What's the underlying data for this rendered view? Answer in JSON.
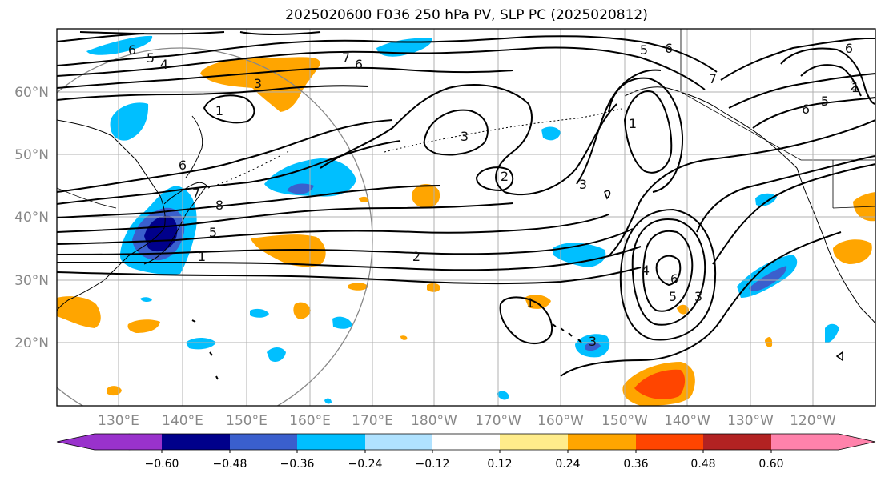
{
  "title": "2025020600 F036 250 hPa PV, SLP PC (2025020812)",
  "lat_labels": [
    "60°N",
    "50°N",
    "40°N",
    "30°N",
    "20°N"
  ],
  "lon_labels": [
    "130°E",
    "140°E",
    "150°E",
    "160°E",
    "170°E",
    "180°W",
    "170°W",
    "160°W",
    "150°W",
    "140°W",
    "130°W",
    "120°W"
  ],
  "colorbar": {
    "ticks": [
      "−0.60",
      "−0.48",
      "−0.36",
      "−0.24",
      "−0.12",
      "0.12",
      "0.24",
      "0.36",
      "0.48",
      "0.60"
    ],
    "colors": [
      "#9932cc",
      "#00008b",
      "#3a5fcd",
      "#00bfff",
      "#b0e2ff",
      "#ffffff",
      "#ffec8b",
      "#ffa500",
      "#ff4500",
      "#b22222",
      "#ff82ab"
    ]
  },
  "contour_labels": [
    "6",
    "5",
    "4",
    "7",
    "6",
    "1",
    "3",
    "5",
    "6",
    "7",
    "1",
    "6",
    "5",
    "6",
    "1",
    "3",
    "6",
    "2",
    "7",
    "3",
    "8",
    "5",
    "1",
    "2",
    "4",
    "6",
    "5",
    "3",
    "1",
    "3",
    "2"
  ],
  "pv_colors": {
    "neg_light": "#00bfff",
    "neg_pale": "#b0e2ff",
    "neg_mid": "#3a5fcd",
    "neg_dark": "#00008b",
    "pos_pale": "#ffec8b",
    "pos_orange": "#ffa500",
    "pos_red": "#ff4500"
  }
}
